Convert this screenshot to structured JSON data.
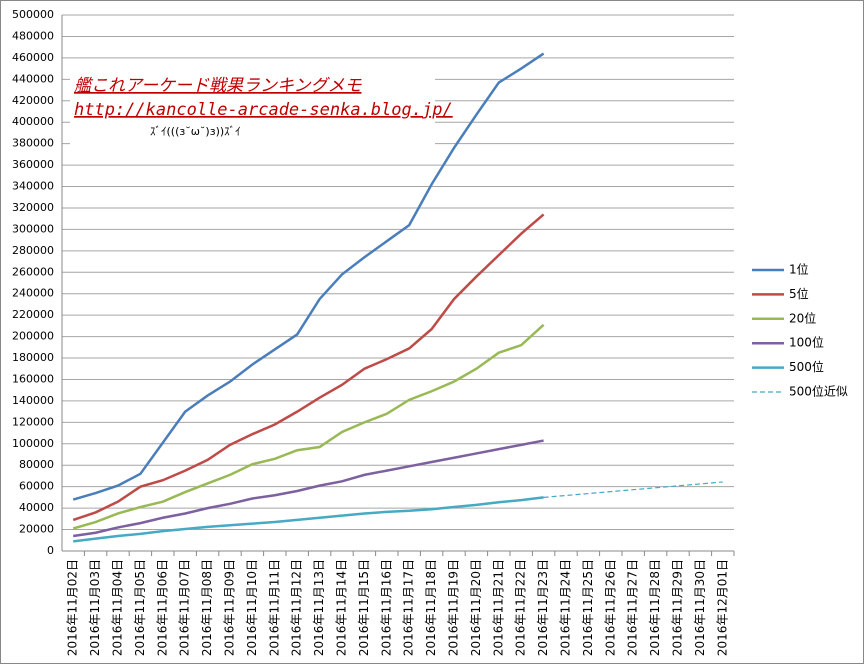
{
  "chart_data": {
    "type": "line",
    "annotation": {
      "title": "艦これアーケード戦果ランキングメモ",
      "url": "http://kancolle-arcade-senka.blog.jp/",
      "face": "ｽﾞｲ(((ɜ˘ω˘)ɜ))ｽﾞｲ"
    },
    "categories": [
      "2016年11月02日",
      "2016年11月03日",
      "2016年11月04日",
      "2016年11月05日",
      "2016年11月06日",
      "2016年11月07日",
      "2016年11月08日",
      "2016年11月09日",
      "2016年11月10日",
      "2016年11月11日",
      "2016年11月12日",
      "2016年11月13日",
      "2016年11月14日",
      "2016年11月15日",
      "2016年11月16日",
      "2016年11月17日",
      "2016年11月18日",
      "2016年11月19日",
      "2016年11月20日",
      "2016年11月21日",
      "2016年11月22日",
      "2016年11月23日",
      "2016年11月24日",
      "2016年11月25日",
      "2016年11月26日",
      "2016年11月27日",
      "2016年11月28日",
      "2016年11月29日",
      "2016年11月30日",
      "2016年12月01日"
    ],
    "series": [
      {
        "name": "1位",
        "color": "#4a7ebb",
        "values": [
          48000,
          54000,
          61000,
          72000,
          101000,
          130000,
          145000,
          158000,
          174000,
          188000,
          202000,
          235000,
          258000,
          274000,
          289000,
          304000,
          342000,
          376000,
          407000,
          437000,
          450000,
          464000,
          null,
          null,
          null,
          null,
          null,
          null,
          null,
          null
        ]
      },
      {
        "name": "5位",
        "color": "#be4b48",
        "values": [
          29000,
          36000,
          46000,
          60000,
          66000,
          75000,
          85000,
          99000,
          109000,
          118000,
          130000,
          143000,
          155000,
          170000,
          179000,
          189000,
          207000,
          235000,
          256000,
          276000,
          296000,
          314000,
          null,
          null,
          null,
          null,
          null,
          null,
          null,
          null
        ]
      },
      {
        "name": "20位",
        "color": "#98b954",
        "values": [
          21000,
          27000,
          35000,
          41000,
          46000,
          55000,
          63000,
          71000,
          81000,
          86000,
          94000,
          97000,
          111000,
          120000,
          128000,
          141000,
          149000,
          158000,
          170000,
          185000,
          192000,
          211000,
          null,
          null,
          null,
          null,
          null,
          null,
          null,
          null
        ]
      },
      {
        "name": "100位",
        "color": "#7d60a0",
        "values": [
          14000,
          17000,
          22000,
          26000,
          31000,
          35000,
          40000,
          44000,
          49000,
          52000,
          56000,
          61000,
          65000,
          71000,
          75000,
          79000,
          83000,
          87000,
          91000,
          95000,
          99000,
          103000,
          null,
          null,
          null,
          null,
          null,
          null,
          null,
          null
        ]
      },
      {
        "name": "500位",
        "color": "#46aac5",
        "values": [
          9000,
          11500,
          14000,
          16000,
          18500,
          20500,
          22500,
          24000,
          25500,
          27000,
          29000,
          31000,
          33000,
          35000,
          36500,
          37500,
          39000,
          41000,
          43000,
          45500,
          47500,
          50000,
          null,
          null,
          null,
          null,
          null,
          null,
          null,
          null
        ]
      },
      {
        "name": "500位近似",
        "color": "#46aac5",
        "dashed": true,
        "values": [
          null,
          null,
          null,
          null,
          null,
          null,
          null,
          null,
          null,
          null,
          null,
          null,
          null,
          null,
          null,
          null,
          null,
          null,
          null,
          null,
          null,
          50000,
          51800,
          53600,
          55400,
          57200,
          59000,
          60800,
          62600,
          64400
        ]
      }
    ],
    "ylim": [
      0,
      500000
    ],
    "yticks": [
      0,
      20000,
      40000,
      60000,
      80000,
      100000,
      120000,
      140000,
      160000,
      180000,
      200000,
      220000,
      240000,
      260000,
      280000,
      300000,
      320000,
      340000,
      360000,
      380000,
      400000,
      420000,
      440000,
      460000,
      480000,
      500000
    ],
    "grid": true
  }
}
